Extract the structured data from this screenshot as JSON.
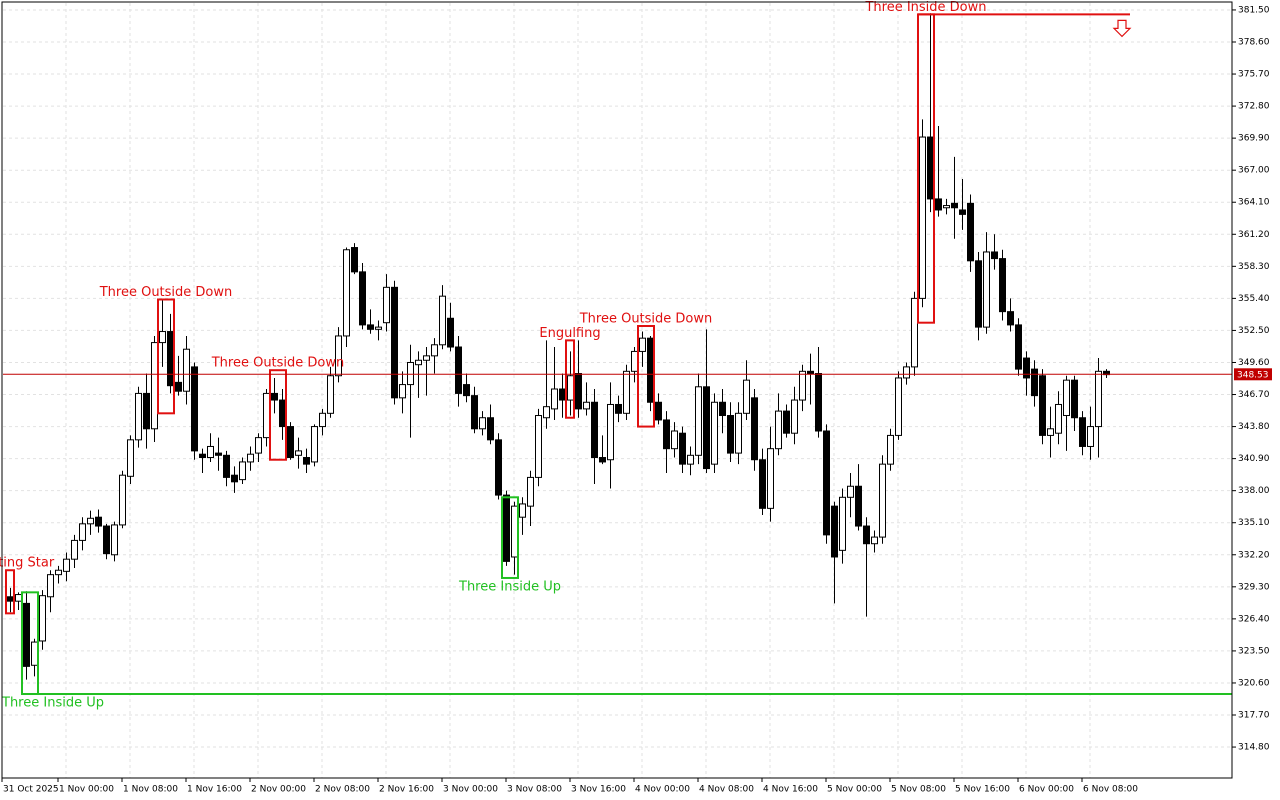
{
  "chart_data": {
    "type": "candlestick",
    "xlim": [
      -1.25,
      152.75
    ],
    "ylim": [
      312.0,
      382.4
    ],
    "xticks": [
      {
        "value": -1,
        "label": "31 Oct 2025"
      },
      {
        "value": 7,
        "label": "1 Nov 00:00"
      },
      {
        "value": 15,
        "label": "1 Nov 08:00"
      },
      {
        "value": 23,
        "label": "1 Nov 16:00"
      },
      {
        "value": 31,
        "label": "2 Nov 00:00"
      },
      {
        "value": 39,
        "label": "2 Nov 08:00"
      },
      {
        "value": 47,
        "label": "2 Nov 16:00"
      },
      {
        "value": 55,
        "label": "3 Nov 00:00"
      },
      {
        "value": 63,
        "label": "3 Nov 08:00"
      },
      {
        "value": 71,
        "label": "3 Nov 16:00"
      },
      {
        "value": 79,
        "label": "4 Nov 00:00"
      },
      {
        "value": 87,
        "label": "4 Nov 08:00"
      },
      {
        "value": 95,
        "label": "4 Nov 16:00"
      },
      {
        "value": 103,
        "label": "5 Nov 00:00"
      },
      {
        "value": 111,
        "label": "5 Nov 08:00"
      },
      {
        "value": 119,
        "label": "5 Nov 16:00"
      },
      {
        "value": 127,
        "label": "6 Nov 00:00"
      },
      {
        "value": 135,
        "label": "6 Nov 08:00"
      }
    ],
    "yticks": [
      {
        "value": 381.5,
        "label": "381.50"
      },
      {
        "value": 378.6,
        "label": "378.60"
      },
      {
        "value": 375.7,
        "label": "375.70"
      },
      {
        "value": 372.8,
        "label": "372.80"
      },
      {
        "value": 369.9,
        "label": "369.90"
      },
      {
        "value": 367.0,
        "label": "367.00"
      },
      {
        "value": 364.1,
        "label": "364.10"
      },
      {
        "value": 361.2,
        "label": "361.20"
      },
      {
        "value": 358.3,
        "label": "358.30"
      },
      {
        "value": 355.4,
        "label": "355.40"
      },
      {
        "value": 352.5,
        "label": "352.50"
      },
      {
        "value": 349.6,
        "label": "349.60"
      },
      {
        "value": 346.7,
        "label": "346.70"
      },
      {
        "value": 343.8,
        "label": "343.80"
      },
      {
        "value": 340.9,
        "label": "340.90"
      },
      {
        "value": 338.0,
        "label": "338.00"
      },
      {
        "value": 335.1,
        "label": "335.10"
      },
      {
        "value": 332.2,
        "label": "332.20"
      },
      {
        "value": 329.3,
        "label": "329.30"
      },
      {
        "value": 326.4,
        "label": "326.40"
      },
      {
        "value": 323.5,
        "label": "323.50"
      },
      {
        "value": 320.6,
        "label": "320.60"
      },
      {
        "value": 317.7,
        "label": "317.70"
      },
      {
        "value": 314.8,
        "label": "314.80"
      }
    ],
    "grid": true,
    "up_color": "#ffffff",
    "down_color": "#000000",
    "last_price": 348.53,
    "last_price_color": "#c00000",
    "open": [
      328.4,
      328.0,
      327.8,
      322.2,
      324.4,
      328.4,
      330.4,
      330.7,
      331.8,
      333.5,
      335.0,
      335.6,
      334.8,
      332.2,
      334.9,
      339.3,
      342.6,
      346.8,
      343.6,
      351.4,
      352.4,
      347.8,
      347.0,
      349.2,
      341.3,
      341.0,
      341.4,
      341.2,
      339.4,
      339.0,
      340.6,
      341.4,
      342.8,
      346.8,
      346.2,
      343.8,
      341.2,
      341.0,
      340.6,
      343.8,
      345.0,
      348.4,
      352.0,
      360.0,
      357.8,
      353.0,
      352.6,
      353.2,
      356.4,
      346.4,
      347.6,
      349.4,
      349.8,
      350.2,
      351.2,
      353.6,
      351.0,
      347.6,
      346.6,
      343.6,
      344.6,
      342.6,
      337.6,
      332.0,
      335.6,
      336.6,
      339.2,
      344.6,
      345.4,
      347.2,
      346.2,
      348.6,
      345.4,
      346.0,
      341.0,
      340.8,
      345.8,
      345.0,
      348.8,
      350.6,
      351.8,
      346.0,
      344.4,
      341.8,
      343.2,
      340.4,
      341.2,
      347.4,
      340.4,
      346.0,
      344.8,
      341.4,
      345.0,
      346.4,
      340.8,
      336.4,
      341.8,
      345.2,
      343.2,
      346.2,
      348.8,
      348.6,
      343.4,
      336.6,
      332.6,
      337.4,
      338.4,
      334.8,
      333.2,
      333.8,
      340.4,
      343.0,
      348.2,
      349.2,
      355.4,
      370.0,
      364.4,
      363.6,
      364.0,
      363.4,
      364.0,
      358.8,
      352.8,
      359.6,
      359.0,
      354.2,
      353.0,
      350.0,
      349.0,
      348.4,
      343.0,
      343.2,
      344.8,
      348.0,
      344.6,
      342.0,
      343.8,
      348.8
    ],
    "high": [
      329.2,
      328.8,
      328.9,
      324.6,
      329.0,
      330.8,
      331.2,
      332.4,
      334.0,
      335.6,
      336.2,
      336.3,
      335.0,
      335.2,
      339.8,
      343.0,
      347.4,
      348.6,
      352.0,
      355.3,
      354.0,
      350.2,
      352.0,
      349.6,
      341.8,
      343.2,
      342.8,
      341.6,
      340.2,
      341.0,
      342.0,
      343.2,
      347.2,
      348.2,
      347.2,
      344.2,
      342.8,
      341.8,
      344.0,
      345.4,
      349.2,
      352.8,
      360.0,
      360.4,
      358.6,
      354.4,
      353.4,
      357.6,
      357.0,
      348.8,
      351.2,
      350.6,
      351.0,
      351.8,
      356.6,
      355.0,
      352.0,
      348.6,
      347.4,
      345.2,
      345.8,
      343.2,
      338.0,
      337.0,
      337.4,
      339.8,
      345.4,
      351.6,
      351.0,
      348.6,
      350.6,
      351.6,
      347.8,
      347.2,
      343.0,
      347.8,
      346.6,
      349.4,
      351.0,
      352.4,
      352.0,
      346.8,
      345.2,
      344.2,
      343.8,
      342.0,
      348.6,
      352.6,
      346.8,
      347.2,
      346.0,
      346.0,
      349.8,
      347.2,
      341.8,
      343.8,
      346.8,
      345.8,
      347.4,
      349.4,
      350.4,
      351.0,
      344.0,
      337.0,
      338.2,
      339.6,
      340.4,
      335.6,
      334.4,
      341.2,
      343.6,
      348.8,
      349.6,
      356.0,
      371.6,
      381.2,
      371.0,
      364.4,
      368.2,
      366.2,
      364.8,
      359.6,
      361.4,
      361.2,
      359.8,
      355.4,
      353.6,
      350.6,
      349.8,
      349.0,
      345.6,
      347.0,
      348.4,
      348.4,
      345.2,
      345.6,
      350.0,
      349.0
    ],
    "low": [
      327.0,
      327.2,
      320.9,
      321.2,
      323.6,
      327.0,
      329.6,
      329.8,
      331.0,
      332.6,
      334.0,
      334.2,
      331.8,
      331.6,
      334.6,
      338.6,
      341.9,
      341.8,
      342.4,
      349.2,
      346.8,
      346.6,
      345.8,
      340.8,
      339.6,
      340.6,
      339.8,
      338.4,
      337.8,
      338.6,
      339.8,
      340.6,
      342.0,
      345.0,
      342.6,
      340.8,
      340.0,
      339.6,
      340.2,
      343.0,
      344.6,
      347.8,
      351.0,
      357.6,
      352.6,
      352.2,
      351.6,
      352.4,
      345.8,
      345.0,
      342.8,
      346.4,
      346.6,
      348.6,
      350.8,
      350.6,
      345.6,
      346.0,
      343.2,
      343.0,
      342.2,
      337.2,
      331.2,
      330.4,
      334.0,
      334.8,
      338.4,
      343.6,
      344.4,
      344.6,
      344.8,
      344.6,
      344.8,
      338.6,
      340.4,
      338.2,
      344.2,
      344.4,
      347.8,
      349.2,
      345.2,
      344.0,
      339.6,
      341.0,
      339.6,
      339.4,
      340.4,
      339.6,
      339.6,
      343.2,
      340.6,
      340.4,
      344.4,
      339.8,
      335.8,
      335.2,
      341.2,
      342.8,
      342.2,
      345.2,
      345.8,
      342.8,
      333.2,
      327.8,
      331.4,
      335.6,
      334.4,
      326.6,
      332.4,
      333.2,
      339.8,
      342.6,
      347.6,
      348.4,
      354.6,
      363.2,
      362.8,
      363.0,
      360.8,
      361.6,
      357.8,
      351.6,
      352.2,
      358.0,
      353.4,
      352.4,
      348.4,
      346.6,
      345.6,
      342.2,
      341.0,
      342.2,
      341.6,
      343.4,
      341.2,
      340.8,
      341.0,
      348.2
    ],
    "close": [
      328.0,
      328.6,
      322.1,
      324.3,
      328.5,
      330.4,
      330.8,
      331.8,
      333.5,
      335.0,
      335.5,
      334.8,
      332.3,
      334.9,
      339.4,
      342.6,
      346.8,
      343.6,
      351.4,
      352.4,
      347.5,
      347.0,
      350.8,
      341.6,
      341.0,
      342.0,
      341.2,
      339.2,
      338.8,
      340.6,
      341.3,
      342.8,
      346.8,
      346.2,
      343.8,
      341.0,
      341.6,
      340.4,
      343.8,
      345.0,
      348.4,
      352.0,
      359.8,
      357.8,
      353.0,
      352.6,
      352.8,
      356.4,
      346.4,
      347.6,
      349.6,
      349.8,
      350.2,
      351.2,
      355.6,
      351.0,
      346.8,
      346.6,
      343.6,
      344.6,
      342.6,
      337.6,
      331.6,
      336.6,
      336.8,
      339.2,
      344.8,
      345.6,
      347.2,
      346.2,
      348.4,
      345.4,
      346.0,
      341.0,
      340.6,
      345.8,
      345.0,
      348.8,
      350.6,
      351.8,
      346.0,
      344.4,
      341.8,
      343.4,
      340.4,
      341.2,
      347.4,
      340.0,
      346.0,
      344.8,
      341.4,
      345.0,
      348.0,
      340.8,
      336.4,
      341.8,
      345.2,
      343.2,
      346.2,
      348.8,
      348.6,
      343.4,
      334.0,
      332.0,
      337.4,
      338.4,
      334.8,
      333.2,
      333.8,
      340.4,
      343.0,
      348.2,
      349.2,
      355.4,
      370.0,
      364.4,
      363.4,
      363.8,
      363.6,
      363.0,
      358.8,
      352.8,
      359.6,
      359.0,
      354.2,
      353.0,
      349.0,
      348.2,
      346.6,
      343.0,
      343.6,
      345.8,
      348.0,
      344.6,
      342.0,
      343.8,
      348.8,
      348.5
    ],
    "patterns": [
      {
        "label": "Shooting Star",
        "color": "#e01010",
        "first": 0,
        "last": 0,
        "high": 330.8,
        "low": 326.9
      },
      {
        "label": "Three Inside Up",
        "color": "#22c022",
        "first": 2,
        "last": 3,
        "high": 328.8,
        "low": 319.6,
        "level": 319.6
      },
      {
        "label": "Three Outside Down",
        "color": "#e01010",
        "first": 19,
        "last": 20,
        "high": 355.3,
        "low": 345.0
      },
      {
        "label": "Three Outside Down",
        "color": "#e01010",
        "first": 33,
        "last": 34,
        "high": 348.9,
        "low": 340.8
      },
      {
        "label": "Three Inside Up",
        "color": "#22c022",
        "first": 62,
        "last": 63,
        "high": 337.4,
        "low": 330.1
      },
      {
        "label": "Engulfing",
        "color": "#e01010",
        "first": 70,
        "last": 70,
        "high": 351.6,
        "low": 344.6
      },
      {
        "label": "Three Outside Down",
        "color": "#e01010",
        "first": 79,
        "last": 80,
        "high": 352.9,
        "low": 343.8
      },
      {
        "label": "Three Inside Down",
        "color": "#e01010",
        "first": 114,
        "last": 115,
        "high": 381.1,
        "low": 353.2,
        "level": 381.1
      }
    ]
  }
}
